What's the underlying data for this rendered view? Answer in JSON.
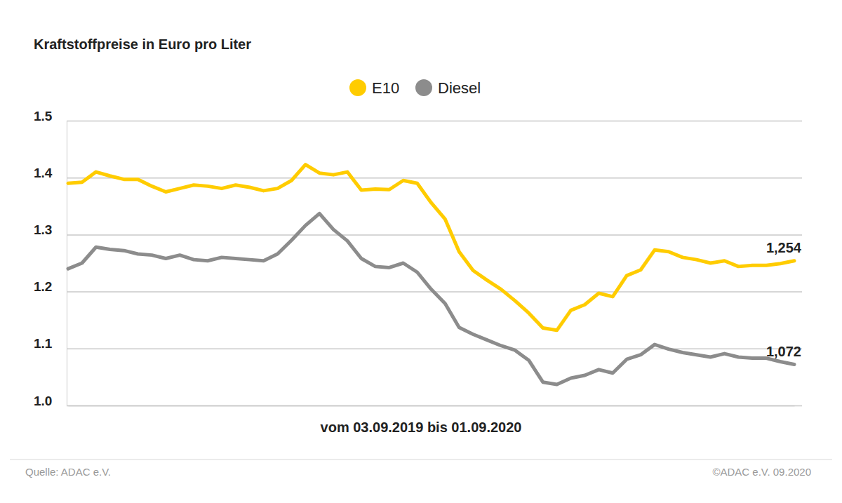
{
  "chart_data": {
    "type": "line",
    "title": "Kraftstoffpreise in Euro pro Liter",
    "x_label": "vom 03.09.2019 bis 01.09.2020",
    "annotations": [
      "Quelle: ADAC e.V.",
      "©ADAC e.V. 09.2020"
    ],
    "categories": [
      null,
      null,
      null,
      null,
      null,
      null,
      null,
      null,
      null,
      null,
      null,
      null,
      null,
      null,
      null,
      null,
      null,
      null,
      null,
      null,
      null,
      null,
      null,
      null,
      null,
      null,
      null,
      null,
      null,
      null,
      null,
      null,
      null,
      null,
      null,
      null,
      null,
      null,
      null,
      null,
      null,
      null,
      null,
      null,
      null,
      null,
      null,
      null,
      null,
      null,
      null,
      null,
      null
    ],
    "series": [
      {
        "name": "E10",
        "color": "#ffcc00",
        "values": [
          1.39,
          1.392,
          1.41,
          1.403,
          1.397,
          1.397,
          1.385,
          1.375,
          1.381,
          1.387,
          1.385,
          1.381,
          1.387,
          1.383,
          1.377,
          1.381,
          1.395,
          1.423,
          1.408,
          1.405,
          1.41,
          1.378,
          1.38,
          1.379,
          1.395,
          1.39,
          1.356,
          1.327,
          1.27,
          1.237,
          1.22,
          1.204,
          1.184,
          1.162,
          1.136,
          1.132,
          1.167,
          1.177,
          1.197,
          1.191,
          1.228,
          1.238,
          1.273,
          1.27,
          1.26,
          1.256,
          1.25,
          1.254,
          1.244,
          1.246,
          1.246,
          1.249,
          1.254
        ],
        "value_labels": [
          null,
          null,
          null,
          null,
          null,
          null,
          null,
          null,
          null,
          null,
          null,
          null,
          null,
          null,
          null,
          null,
          null,
          null,
          null,
          null,
          null,
          null,
          null,
          null,
          null,
          null,
          null,
          null,
          null,
          null,
          null,
          null,
          null,
          null,
          null,
          null,
          null,
          null,
          null,
          null,
          null,
          null,
          null,
          null,
          null,
          null,
          null,
          null,
          null,
          null,
          null,
          null,
          "1,254"
        ]
      },
      {
        "name": "Diesel",
        "color": "#8c8c8c",
        "values": [
          1.24,
          1.25,
          1.278,
          1.274,
          1.272,
          1.266,
          1.264,
          1.258,
          1.264,
          1.256,
          1.254,
          1.26,
          1.258,
          1.256,
          1.254,
          1.266,
          1.29,
          1.316,
          1.337,
          1.309,
          1.289,
          1.258,
          1.244,
          1.242,
          1.25,
          1.234,
          1.204,
          1.179,
          1.137,
          1.125,
          1.115,
          1.105,
          1.097,
          1.079,
          1.041,
          1.037,
          1.048,
          1.053,
          1.063,
          1.057,
          1.081,
          1.089,
          1.107,
          1.099,
          1.093,
          1.089,
          1.085,
          1.091,
          1.085,
          1.083,
          1.083,
          1.077,
          1.072
        ],
        "value_labels": [
          null,
          null,
          null,
          null,
          null,
          null,
          null,
          null,
          null,
          null,
          null,
          null,
          null,
          null,
          null,
          null,
          null,
          null,
          null,
          null,
          null,
          null,
          null,
          null,
          null,
          null,
          null,
          null,
          null,
          null,
          null,
          null,
          null,
          null,
          null,
          null,
          null,
          null,
          null,
          null,
          null,
          null,
          null,
          null,
          null,
          null,
          null,
          null,
          null,
          null,
          null,
          null,
          "1,072"
        ]
      }
    ],
    "ylim": [
      1,
      1.5
    ],
    "yticks": [
      {
        "value": 1,
        "label": "1.0"
      },
      1.1,
      1.2,
      1.3,
      1.4,
      1.5
    ],
    "grid": true,
    "legend": "top",
    "tick_labels": "y"
  }
}
